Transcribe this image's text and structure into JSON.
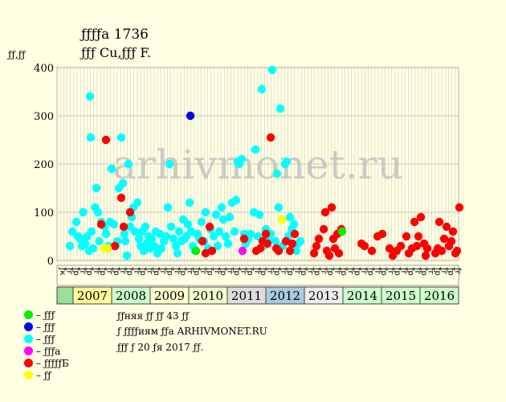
{
  "header": {
    "title": "ƒƒƒƒа 1736",
    "subtitle": "ƒƒƒ Cu,ƒƒƒ F.",
    "ylabel": "ƒƒ,ƒƒ"
  },
  "watermark": "arhivmonet.ru",
  "notes": [
    "ƒƒняя ƒƒ ƒƒ 43 ƒƒ",
    "ƒ ƒƒƒƒиям ƒƒа ARHIVMONET.RU",
    "ƒƒƒ ƒ 20 ƒя 2017 ƒƒ."
  ],
  "chart_data": {
    "type": "scatter",
    "ylim": [
      0,
      400
    ],
    "yticks": [
      0,
      100,
      200,
      300,
      400
    ],
    "grid": true,
    "legend_placement": "bottom-left",
    "years": [
      "2007",
      "2008",
      "2009",
      "2010",
      "2011",
      "2012",
      "2013",
      "2014",
      "2015",
      "2016"
    ],
    "year_colors": [
      "#ffff99",
      "#ccffcc",
      "#ffffcc",
      "#eeffcc",
      "#dddddd",
      "#aaccdd",
      "#eeeeee",
      "#ccffcc",
      "#ccffcc",
      "#ccffcc"
    ],
    "month_labels": [
      "ƒк",
      "ƒк",
      "ƒг",
      "ƒк",
      "ƒр",
      "ƒк",
      "ƒг",
      "ƒк",
      "ƒр",
      "ƒк",
      "ƒг",
      "ƒк",
      "ƒр",
      "ƒк",
      "ƒг",
      "ƒк",
      "ƒр",
      "ƒк",
      "ƒг",
      "ƒк",
      "ƒр",
      "ƒк",
      "ƒг",
      "ƒк",
      "ƒр",
      "ƒк",
      "ƒг",
      "ƒк",
      "ƒр",
      "ƒк",
      "ƒг",
      "ƒк",
      "ƒр",
      "ƒк",
      "ƒг",
      "ƒк",
      "ƒр",
      "ƒк",
      "ƒг",
      "ƒк",
      "ƒр",
      "ƒк",
      "ƒг",
      "ƒк",
      "ƒр",
      "ƒк",
      "ƒг",
      "ƒк",
      "ƒр",
      "ƒк",
      "ƒг",
      "ƒк",
      "ƒр",
      "ƒк",
      "ƒг",
      "ƒк",
      "ƒр",
      "ƒк",
      "ƒг",
      "ƒк",
      "ƒр",
      "ƒк",
      "ƒг",
      "ƒк",
      "ƒр",
      "ƒк",
      "ƒг",
      "ƒк",
      "ƒр",
      "ƒк",
      "ƒг",
      "ƒк",
      "ƒр",
      "ƒк",
      "ƒг",
      "ƒк",
      "ƒр",
      "ƒк",
      "ƒг",
      "ƒк",
      "ƒр",
      "ƒк",
      "ƒг",
      "ƒк",
      "ƒр",
      "ƒк",
      "ƒг",
      "ƒк",
      "ƒр",
      "ƒк",
      "ƒг",
      "ƒк",
      "ƒр",
      "ƒк",
      "ƒг",
      "ƒк",
      "ƒр",
      "ƒк",
      "ƒг",
      "ƒк",
      "ƒр",
      "ƒк",
      "ƒг",
      "ƒк",
      "ƒр",
      "ƒк",
      "ƒг",
      "ƒк",
      "ƒр",
      "ƒк",
      "ƒг",
      "ƒк",
      "ƒр",
      "ƒк",
      "ƒг",
      "ƒк",
      "ƒр",
      "ƒк",
      "ƒг",
      "ƒк"
    ],
    "legend": [
      {
        "label": "– ƒƒƒ",
        "color": "#00ee00"
      },
      {
        "label": "– ƒƒƒ",
        "color": "#0000ee"
      },
      {
        "label": "– ƒƒƒ",
        "color": "#00ffff"
      },
      {
        "label": "– ƒƒƒа",
        "color": "#ff00ff"
      },
      {
        "label": "– ƒƒƒƒƒБ",
        "color": "#ff0000"
      },
      {
        "label": "– ƒƒ",
        "color": "#ffff00"
      }
    ],
    "series": [
      {
        "color": "#00ffff",
        "points": [
          [
            2006.92,
            30
          ],
          [
            2006.98,
            60
          ],
          [
            2007.08,
            80
          ],
          [
            2007.12,
            50
          ],
          [
            2007.18,
            45
          ],
          [
            2007.22,
            30
          ],
          [
            2007.25,
            100
          ],
          [
            2007.3,
            35
          ],
          [
            2007.35,
            50
          ],
          [
            2007.4,
            20
          ],
          [
            2007.42,
            340
          ],
          [
            2007.44,
            255
          ],
          [
            2007.46,
            60
          ],
          [
            2007.5,
            25
          ],
          [
            2007.55,
            110
          ],
          [
            2007.58,
            150
          ],
          [
            2007.62,
            100
          ],
          [
            2007.65,
            40
          ],
          [
            2007.7,
            80
          ],
          [
            2007.78,
            70
          ],
          [
            2007.82,
            55
          ],
          [
            2007.88,
            30
          ],
          [
            2007.92,
            80
          ],
          [
            2007.96,
            190
          ],
          [
            2008.02,
            75
          ],
          [
            2008.06,
            30
          ],
          [
            2008.1,
            40
          ],
          [
            2008.14,
            150
          ],
          [
            2008.2,
            255
          ],
          [
            2008.24,
            160
          ],
          [
            2008.28,
            55
          ],
          [
            2008.3,
            40
          ],
          [
            2008.34,
            10
          ],
          [
            2008.38,
            200
          ],
          [
            2008.42,
            70
          ],
          [
            2008.46,
            90
          ],
          [
            2008.5,
            110
          ],
          [
            2008.54,
            60
          ],
          [
            2008.6,
            120
          ],
          [
            2008.64,
            45
          ],
          [
            2008.68,
            30
          ],
          [
            2008.72,
            60
          ],
          [
            2008.76,
            20
          ],
          [
            2008.8,
            70
          ],
          [
            2008.84,
            35
          ],
          [
            2008.88,
            50
          ],
          [
            2008.92,
            25
          ],
          [
            2008.96,
            45
          ],
          [
            2009.02,
            30
          ],
          [
            2009.06,
            60
          ],
          [
            2009.1,
            15
          ],
          [
            2009.16,
            55
          ],
          [
            2009.2,
            25
          ],
          [
            2009.26,
            40
          ],
          [
            2009.32,
            50
          ],
          [
            2009.36,
            110
          ],
          [
            2009.4,
            200
          ],
          [
            2009.44,
            70
          ],
          [
            2009.5,
            45
          ],
          [
            2009.56,
            30
          ],
          [
            2009.6,
            15
          ],
          [
            2009.64,
            60
          ],
          [
            2009.7,
            40
          ],
          [
            2009.74,
            85
          ],
          [
            2009.78,
            45
          ],
          [
            2009.82,
            50
          ],
          [
            2009.86,
            75
          ],
          [
            2009.9,
            120
          ],
          [
            2009.94,
            60
          ],
          [
            2009.98,
            30
          ],
          [
            2010.04,
            20
          ],
          [
            2010.1,
            55
          ],
          [
            2010.14,
            45
          ],
          [
            2010.2,
            80
          ],
          [
            2010.26,
            40
          ],
          [
            2010.3,
            100
          ],
          [
            2010.36,
            25
          ],
          [
            2010.42,
            65
          ],
          [
            2010.5,
            50
          ],
          [
            2010.56,
            95
          ],
          [
            2010.6,
            30
          ],
          [
            2010.64,
            60
          ],
          [
            2010.7,
            110
          ],
          [
            2010.74,
            85
          ],
          [
            2010.8,
            50
          ],
          [
            2010.86,
            35
          ],
          [
            2010.9,
            90
          ],
          [
            2010.96,
            120
          ],
          [
            2011.02,
            60
          ],
          [
            2011.06,
            125
          ],
          [
            2011.1,
            205
          ],
          [
            2011.14,
            200
          ],
          [
            2011.2,
            210
          ],
          [
            2011.26,
            55
          ],
          [
            2011.3,
            35
          ],
          [
            2011.36,
            45
          ],
          [
            2011.42,
            55
          ],
          [
            2011.5,
            100
          ],
          [
            2011.54,
            230
          ],
          [
            2011.6,
            50
          ],
          [
            2011.64,
            95
          ],
          [
            2011.7,
            355
          ],
          [
            2011.74,
            30
          ],
          [
            2011.8,
            65
          ],
          [
            2011.86,
            45
          ],
          [
            2011.92,
            55
          ],
          [
            2011.96,
            395
          ],
          [
            2012.04,
            40
          ],
          [
            2012.08,
            180
          ],
          [
            2012.12,
            110
          ],
          [
            2012.16,
            315
          ],
          [
            2012.22,
            30
          ],
          [
            2012.28,
            200
          ],
          [
            2012.32,
            205
          ],
          [
            2012.36,
            50
          ],
          [
            2012.4,
            90
          ],
          [
            2012.44,
            65
          ],
          [
            2012.5,
            75
          ],
          [
            2012.56,
            20
          ],
          [
            2012.6,
            35
          ],
          [
            2012.66,
            40
          ]
        ]
      },
      {
        "color": "#ff0000",
        "points": [
          [
            2007.7,
            75
          ],
          [
            2007.82,
            250
          ],
          [
            2008.04,
            30
          ],
          [
            2008.2,
            130
          ],
          [
            2008.26,
            70
          ],
          [
            2008.42,
            100
          ],
          [
            2010.22,
            40
          ],
          [
            2010.3,
            15
          ],
          [
            2010.4,
            70
          ],
          [
            2010.46,
            20
          ],
          [
            2011.26,
            45
          ],
          [
            2011.56,
            20
          ],
          [
            2011.66,
            25
          ],
          [
            2011.72,
            40
          ],
          [
            2011.8,
            55
          ],
          [
            2011.84,
            35
          ],
          [
            2011.92,
            255
          ],
          [
            2012.06,
            25
          ],
          [
            2012.12,
            20
          ],
          [
            2012.3,
            40
          ],
          [
            2012.4,
            20
          ],
          [
            2012.46,
            35
          ],
          [
            2012.52,
            55
          ],
          [
            2013.0,
            15
          ],
          [
            2013.06,
            30
          ],
          [
            2013.12,
            45
          ],
          [
            2013.24,
            65
          ],
          [
            2013.28,
            100
          ],
          [
            2013.32,
            20
          ],
          [
            2013.38,
            10
          ],
          [
            2013.44,
            110
          ],
          [
            2013.48,
            45
          ],
          [
            2013.52,
            25
          ],
          [
            2013.58,
            55
          ],
          [
            2013.62,
            15
          ],
          [
            2013.68,
            65
          ],
          [
            2014.18,
            35
          ],
          [
            2014.26,
            30
          ],
          [
            2014.44,
            20
          ],
          [
            2014.58,
            50
          ],
          [
            2014.7,
            55
          ],
          [
            2014.88,
            25
          ],
          [
            2014.96,
            10
          ],
          [
            2015.06,
            20
          ],
          [
            2015.16,
            30
          ],
          [
            2015.3,
            50
          ],
          [
            2015.36,
            15
          ],
          [
            2015.44,
            25
          ],
          [
            2015.5,
            80
          ],
          [
            2015.56,
            30
          ],
          [
            2015.6,
            50
          ],
          [
            2015.66,
            90
          ],
          [
            2015.74,
            35
          ],
          [
            2015.78,
            10
          ],
          [
            2015.82,
            25
          ],
          [
            2016.02,
            15
          ],
          [
            2016.08,
            25
          ],
          [
            2016.12,
            80
          ],
          [
            2016.18,
            20
          ],
          [
            2016.24,
            45
          ],
          [
            2016.3,
            70
          ],
          [
            2016.36,
            30
          ],
          [
            2016.42,
            40
          ],
          [
            2016.46,
            60
          ],
          [
            2016.52,
            15
          ],
          [
            2016.56,
            20
          ],
          [
            2016.62,
            110
          ]
        ]
      },
      {
        "color": "#0000ee",
        "points": [
          [
            2009.92,
            300
          ]
        ]
      },
      {
        "color": "#00ee00",
        "points": [
          [
            2010.06,
            20
          ],
          [
            2013.7,
            60
          ]
        ]
      },
      {
        "color": "#ff00ff",
        "points": [
          [
            2011.22,
            20
          ]
        ]
      },
      {
        "color": "#ffff00",
        "points": [
          [
            2007.76,
            25
          ],
          [
            2007.86,
            25
          ],
          [
            2012.2,
            85
          ]
        ]
      }
    ]
  }
}
